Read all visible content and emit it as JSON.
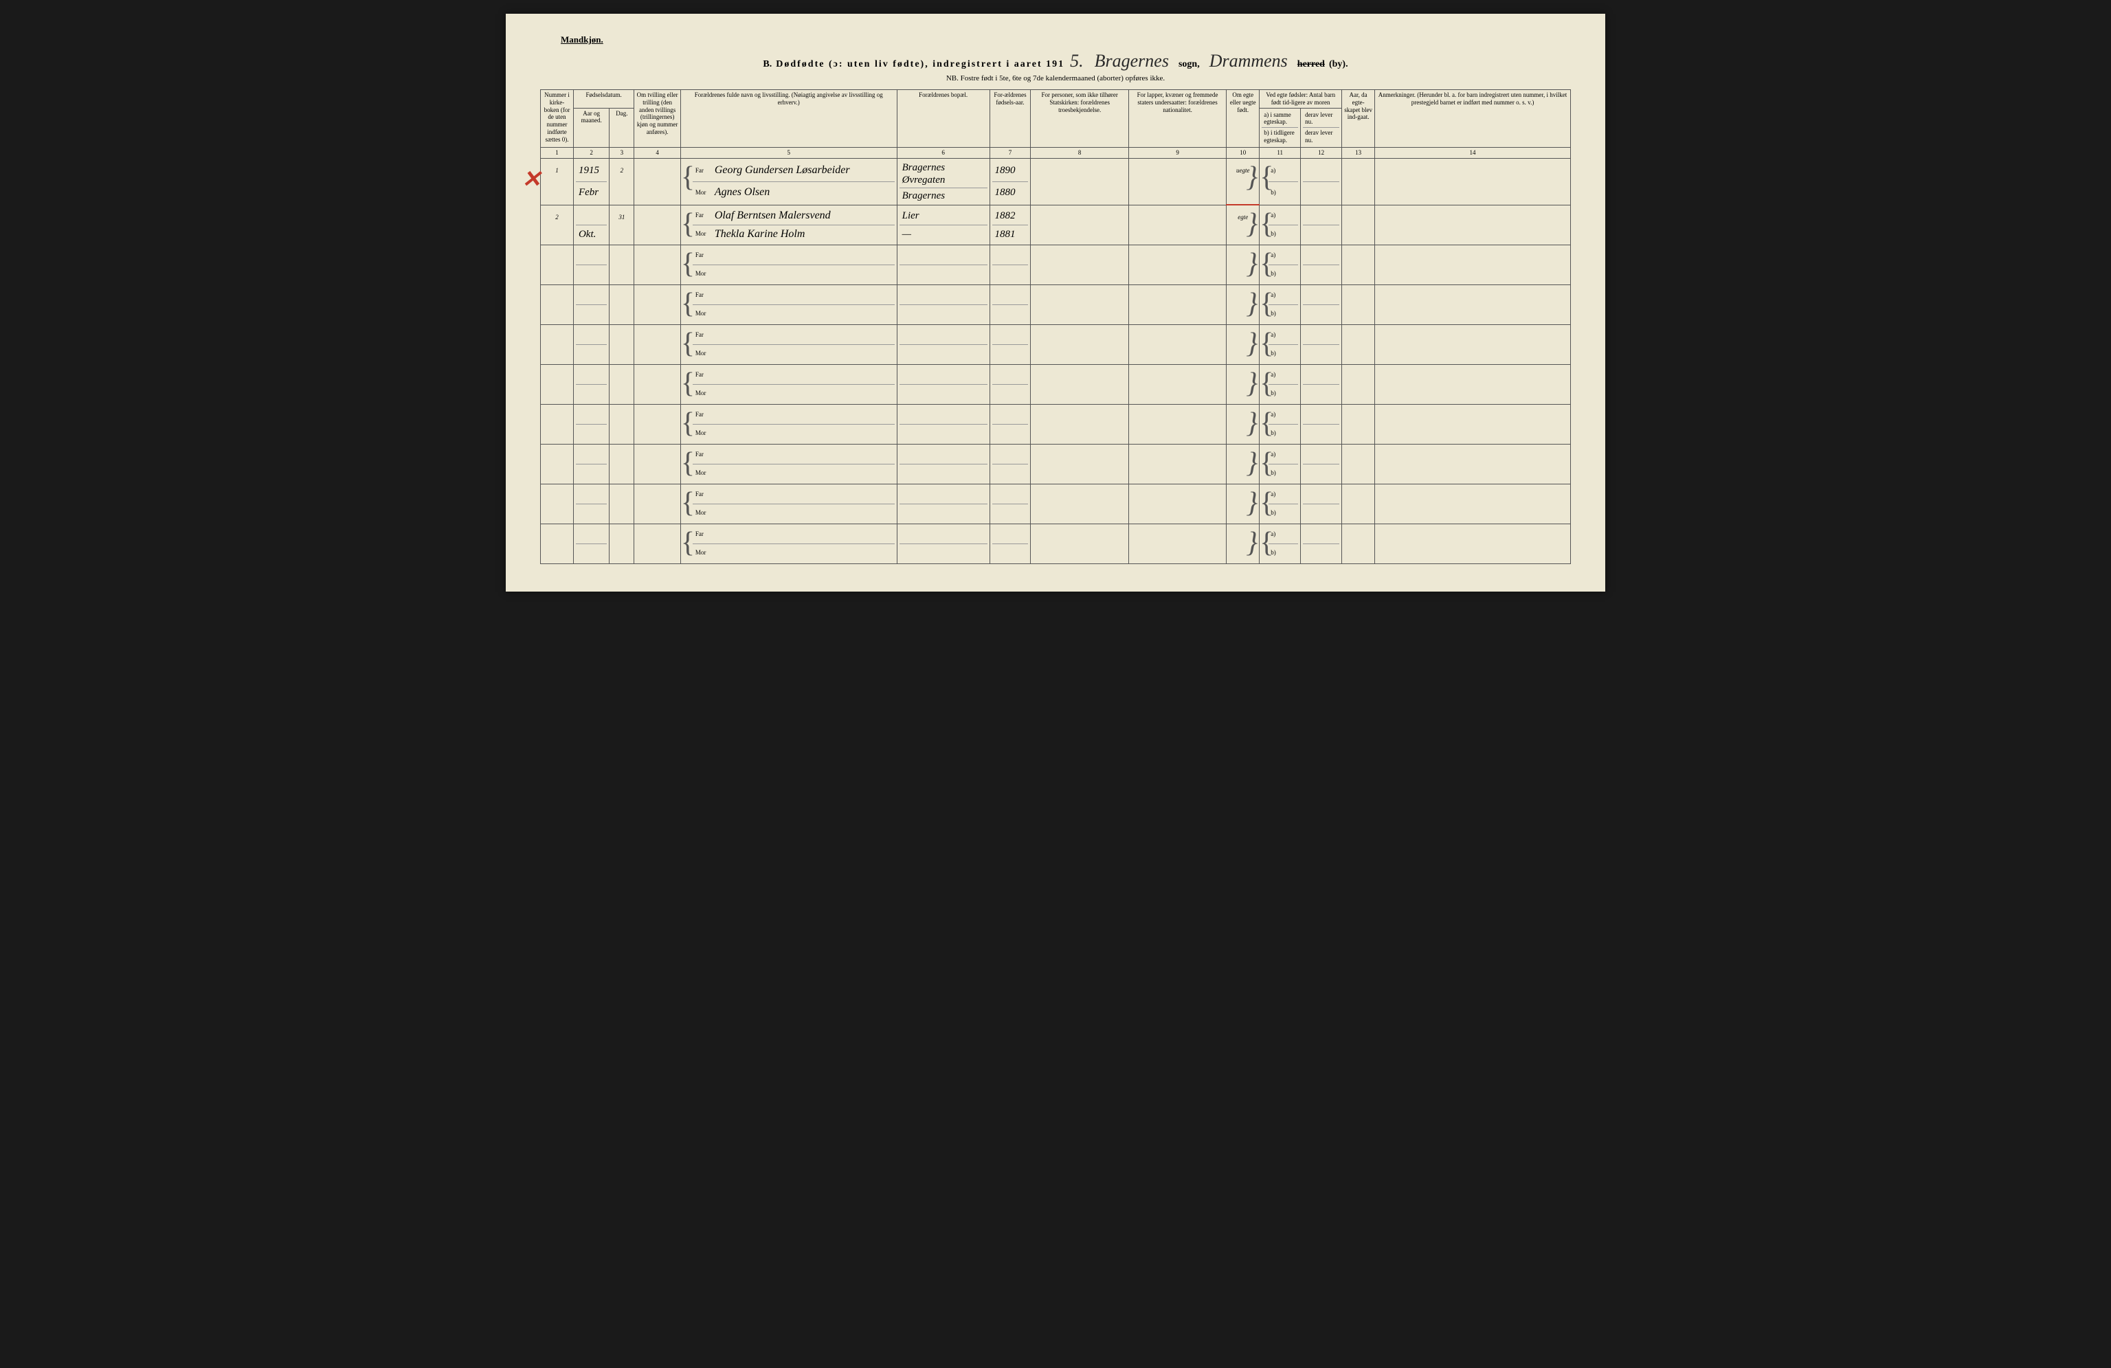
{
  "header": {
    "gender_label": "Mandkjøn.",
    "section_letter": "B.",
    "title_main": "Dødfødte (ɔ: uten liv fødte), indregistrert i aaret 191",
    "year_suffix": "5.",
    "parish_hw": "Bragernes",
    "sogn_label": "sogn,",
    "district_hw": "Drammens",
    "herred_struck": "herred",
    "by_label": "(by).",
    "nb_line": "NB. Fostre født i 5te, 6te og 7de kalendermaaned (aborter) opføres ikke."
  },
  "columns": {
    "c1": "Nummer i kirke-boken (for de uten nummer indførte sættes 0).",
    "c2_top": "Fødselsdatum.",
    "c2a": "Aar og maaned.",
    "c2b": "Dag.",
    "c4": "Om tvilling eller trilling (den anden tvillings (trillingernes) kjøn og nummer anføres).",
    "c5": "Forældrenes fulde navn og livsstilling.\n(Nøiagtig angivelse av livsstilling og erhverv.)",
    "c6": "Forældrenes bopæl.",
    "c7": "For-ældrenes fødsels-aar.",
    "c8": "For personer, som ikke tilhører Statskirken: forældrenes troesbekjendelse.",
    "c9": "For lapper, kvæner og fremmede staters undersaatter: forældrenes nationalitet.",
    "c10": "Om egte eller uegte født.",
    "c11_top": "Ved egte fødsler: Antal barn født tid-ligere av moren",
    "c11a": "a) i samme egteskap.",
    "c11b": "b) i tidligere egteskap.",
    "c12a": "derav lever nu.",
    "c12b": "derav lever nu.",
    "c13": "Aar, da egte-skapet blev ind-gaat.",
    "c14": "Anmerkninger.\n(Herunder bl. a. for barn indregistrert uten nummer, i hvilket prestegjeld barnet er indført med nummer o. s. v.)"
  },
  "colnums": [
    "1",
    "2",
    "3",
    "4",
    "5",
    "6",
    "7",
    "8",
    "9",
    "10",
    "11",
    "12",
    "13",
    "14"
  ],
  "far_label": "Far",
  "mor_label": "Mor",
  "ab_a": "a)",
  "ab_b": "b)",
  "rows": [
    {
      "num": "1",
      "year_month_top": "1915",
      "year_month_bot": "Febr",
      "day": "2",
      "far_name": "Georg Gundersen Løsarbeider",
      "mor_name": "Agnes Olsen",
      "far_bopel": "Bragernes Øvregaten",
      "mor_bopel": "Bragernes",
      "far_year": "1890",
      "mor_year": "1880",
      "egte": "uegte",
      "red_x": true,
      "red_under": true
    },
    {
      "num": "2",
      "year_month_top": "",
      "year_month_bot": "Okt.",
      "day": "31",
      "far_name": "Olaf Berntsen Malersvend",
      "mor_name": "Thekla Karine Holm",
      "far_bopel": "Lier",
      "mor_bopel": "—",
      "far_year": "1882",
      "mor_year": "1881",
      "egte": "egte",
      "red_x": false,
      "red_under": false
    },
    {
      "num": "",
      "year_month_top": "",
      "year_month_bot": "",
      "day": "",
      "far_name": "",
      "mor_name": "",
      "far_bopel": "",
      "mor_bopel": "",
      "far_year": "",
      "mor_year": "",
      "egte": "",
      "red_x": false,
      "red_under": false
    },
    {
      "num": "",
      "year_month_top": "",
      "year_month_bot": "",
      "day": "",
      "far_name": "",
      "mor_name": "",
      "far_bopel": "",
      "mor_bopel": "",
      "far_year": "",
      "mor_year": "",
      "egte": "",
      "red_x": false,
      "red_under": false
    },
    {
      "num": "",
      "year_month_top": "",
      "year_month_bot": "",
      "day": "",
      "far_name": "",
      "mor_name": "",
      "far_bopel": "",
      "mor_bopel": "",
      "far_year": "",
      "mor_year": "",
      "egte": "",
      "red_x": false,
      "red_under": false
    },
    {
      "num": "",
      "year_month_top": "",
      "year_month_bot": "",
      "day": "",
      "far_name": "",
      "mor_name": "",
      "far_bopel": "",
      "mor_bopel": "",
      "far_year": "",
      "mor_year": "",
      "egte": "",
      "red_x": false,
      "red_under": false
    },
    {
      "num": "",
      "year_month_top": "",
      "year_month_bot": "",
      "day": "",
      "far_name": "",
      "mor_name": "",
      "far_bopel": "",
      "mor_bopel": "",
      "far_year": "",
      "mor_year": "",
      "egte": "",
      "red_x": false,
      "red_under": false
    },
    {
      "num": "",
      "year_month_top": "",
      "year_month_bot": "",
      "day": "",
      "far_name": "",
      "mor_name": "",
      "far_bopel": "",
      "mor_bopel": "",
      "far_year": "",
      "mor_year": "",
      "egte": "",
      "red_x": false,
      "red_under": false
    },
    {
      "num": "",
      "year_month_top": "",
      "year_month_bot": "",
      "day": "",
      "far_name": "",
      "mor_name": "",
      "far_bopel": "",
      "mor_bopel": "",
      "far_year": "",
      "mor_year": "",
      "egte": "",
      "red_x": false,
      "red_under": false
    },
    {
      "num": "",
      "year_month_top": "",
      "year_month_bot": "",
      "day": "",
      "far_name": "",
      "mor_name": "",
      "far_bopel": "",
      "mor_bopel": "",
      "far_year": "",
      "mor_year": "",
      "egte": "",
      "red_x": false,
      "red_under": false
    }
  ],
  "style": {
    "page_bg": "#ede8d4",
    "border_color": "#555555",
    "red": "#c43a2a",
    "handwriting_color": "#2a2a2a",
    "header_fontsize": 14,
    "cell_fontsize": 9,
    "handwriting_fontsize": 18
  }
}
